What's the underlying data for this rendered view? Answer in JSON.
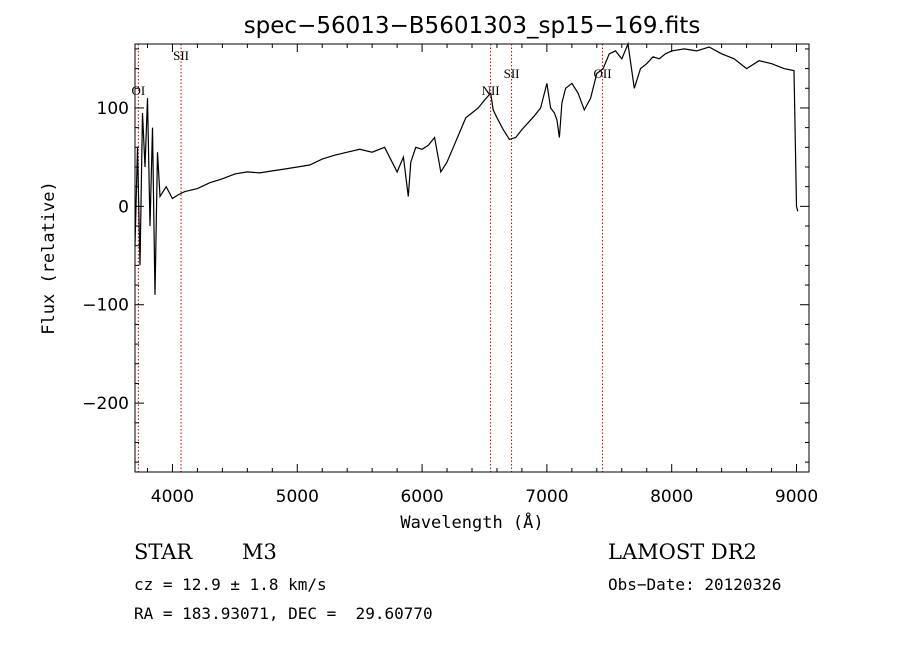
{
  "chart_data": {
    "type": "line",
    "title": "spec−56013−B5601303_sp15−169.fits",
    "xlabel": "Wavelength (Å)",
    "ylabel": "Flux (relative)",
    "xlim": [
      3700,
      9100
    ],
    "ylim": [
      -270,
      165
    ],
    "x_ticks": [
      4000,
      5000,
      6000,
      7000,
      8000,
      9000
    ],
    "y_ticks": [
      -200,
      -100,
      0,
      100
    ],
    "y_tick_labels": [
      "−200",
      "−100",
      "0",
      "100"
    ],
    "grid": false,
    "line_color": "#000000",
    "marker_color": "#cc0000",
    "series": [
      {
        "x": [
          3700,
          3720,
          3740,
          3760,
          3780,
          3800,
          3820,
          3840,
          3860,
          3880,
          3900,
          3950,
          4000,
          4050,
          4100,
          4200,
          4300,
          4400,
          4500,
          4600,
          4700,
          4800,
          4900,
          5000,
          5100,
          5200,
          5300,
          5400,
          5500,
          5600,
          5700,
          5800,
          5850,
          5890,
          5910,
          5950,
          6000,
          6050,
          6100,
          6150,
          6200,
          6250,
          6300,
          6350,
          6400,
          6450,
          6500,
          6550,
          6570,
          6600,
          6650,
          6700,
          6750,
          6800,
          6850,
          6900,
          6950,
          7000,
          7030,
          7060,
          7080,
          7100,
          7120,
          7150,
          7200,
          7250,
          7300,
          7350,
          7400,
          7450,
          7500,
          7550,
          7600,
          7650,
          7700,
          7750,
          7800,
          7850,
          7900,
          7950,
          8000,
          8100,
          8200,
          8300,
          8400,
          8500,
          8600,
          8700,
          8800,
          8900,
          8980,
          9000,
          9010
        ],
        "y": [
          -40,
          60,
          -60,
          95,
          40,
          110,
          -20,
          80,
          -90,
          55,
          10,
          20,
          8,
          12,
          15,
          18,
          24,
          28,
          33,
          35,
          34,
          36,
          38,
          40,
          42,
          48,
          52,
          55,
          58,
          55,
          60,
          35,
          50,
          10,
          45,
          60,
          58,
          62,
          70,
          35,
          45,
          60,
          75,
          90,
          95,
          100,
          108,
          115,
          98,
          90,
          78,
          68,
          70,
          78,
          85,
          92,
          100,
          125,
          100,
          95,
          88,
          70,
          105,
          120,
          125,
          115,
          98,
          110,
          135,
          140,
          155,
          158,
          150,
          165,
          120,
          140,
          145,
          152,
          150,
          155,
          158,
          160,
          158,
          162,
          155,
          150,
          140,
          148,
          145,
          140,
          138,
          0,
          -5
        ]
      }
    ],
    "line_markers": [
      {
        "label": "OI",
        "x": 3727
      },
      {
        "label": "SII",
        "x": 4069
      },
      {
        "label": "NII",
        "x": 6549
      },
      {
        "label": "SII",
        "x": 6717
      },
      {
        "label": "OII",
        "x": 7446
      }
    ]
  },
  "info": {
    "object_class": "STAR",
    "subclass": "M3",
    "survey": "LAMOST DR2",
    "redshift_line": "cz = 12.9 ± 1.8 km/s",
    "obs_date": "Obs−Date: 20120326",
    "coords": "RA = 183.93071, DEC =  29.60770"
  }
}
